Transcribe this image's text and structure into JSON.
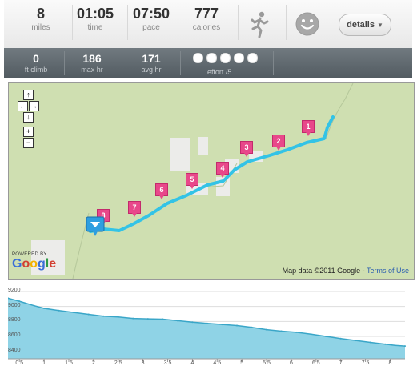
{
  "stats": [
    {
      "value": "8",
      "label": "miles"
    },
    {
      "value": "01:05",
      "label": "time"
    },
    {
      "value": "07:50",
      "label": "pace"
    },
    {
      "value": "777",
      "label": "calories"
    }
  ],
  "details_label": "details",
  "sub_stats": [
    {
      "value": "0",
      "label": "ft climb"
    },
    {
      "value": "186",
      "label": "max hr"
    },
    {
      "value": "171",
      "label": "avg hr"
    }
  ],
  "effort": {
    "label": "effort /5",
    "dots": 5
  },
  "map": {
    "markers": [
      "1",
      "2",
      "3",
      "4",
      "5",
      "6",
      "7",
      "8"
    ],
    "attribution": "Map data ©2011 Google - ",
    "terms_link": "Terms of Use",
    "powered_by": "POWERED BY",
    "logo_text": "Google"
  },
  "colors": {
    "route": "#33c3e6",
    "marker": "#e8488a",
    "map_bg": "#cfdfb1",
    "area_fill": "#8fd3e6"
  },
  "chart_data": {
    "type": "area",
    "y_ticks": [
      "9200",
      "9000",
      "8800",
      "8600",
      "8400"
    ],
    "ylim": [
      8300,
      9200
    ],
    "x_ticks": [
      "0.5",
      "1",
      "1.5",
      "2",
      "2.5",
      "3",
      "3.5",
      "4",
      "4.5",
      "5",
      "5.5",
      "6",
      "6.5",
      "7",
      "7.5",
      "8"
    ],
    "xlim": [
      0.27,
      8.3
    ],
    "x": [
      0.27,
      0.5,
      0.8,
      1.0,
      1.3,
      1.6,
      1.9,
      2.2,
      2.5,
      2.8,
      3.1,
      3.4,
      3.7,
      4.0,
      4.3,
      4.6,
      4.9,
      5.2,
      5.5,
      5.8,
      6.1,
      6.4,
      6.7,
      7.0,
      7.3,
      7.6,
      7.9,
      8.1,
      8.3
    ],
    "values": [
      9110,
      9070,
      9010,
      8975,
      8945,
      8920,
      8895,
      8870,
      8860,
      8840,
      8835,
      8830,
      8810,
      8790,
      8775,
      8760,
      8745,
      8720,
      8690,
      8670,
      8655,
      8630,
      8600,
      8570,
      8545,
      8520,
      8495,
      8480,
      8470
    ]
  }
}
